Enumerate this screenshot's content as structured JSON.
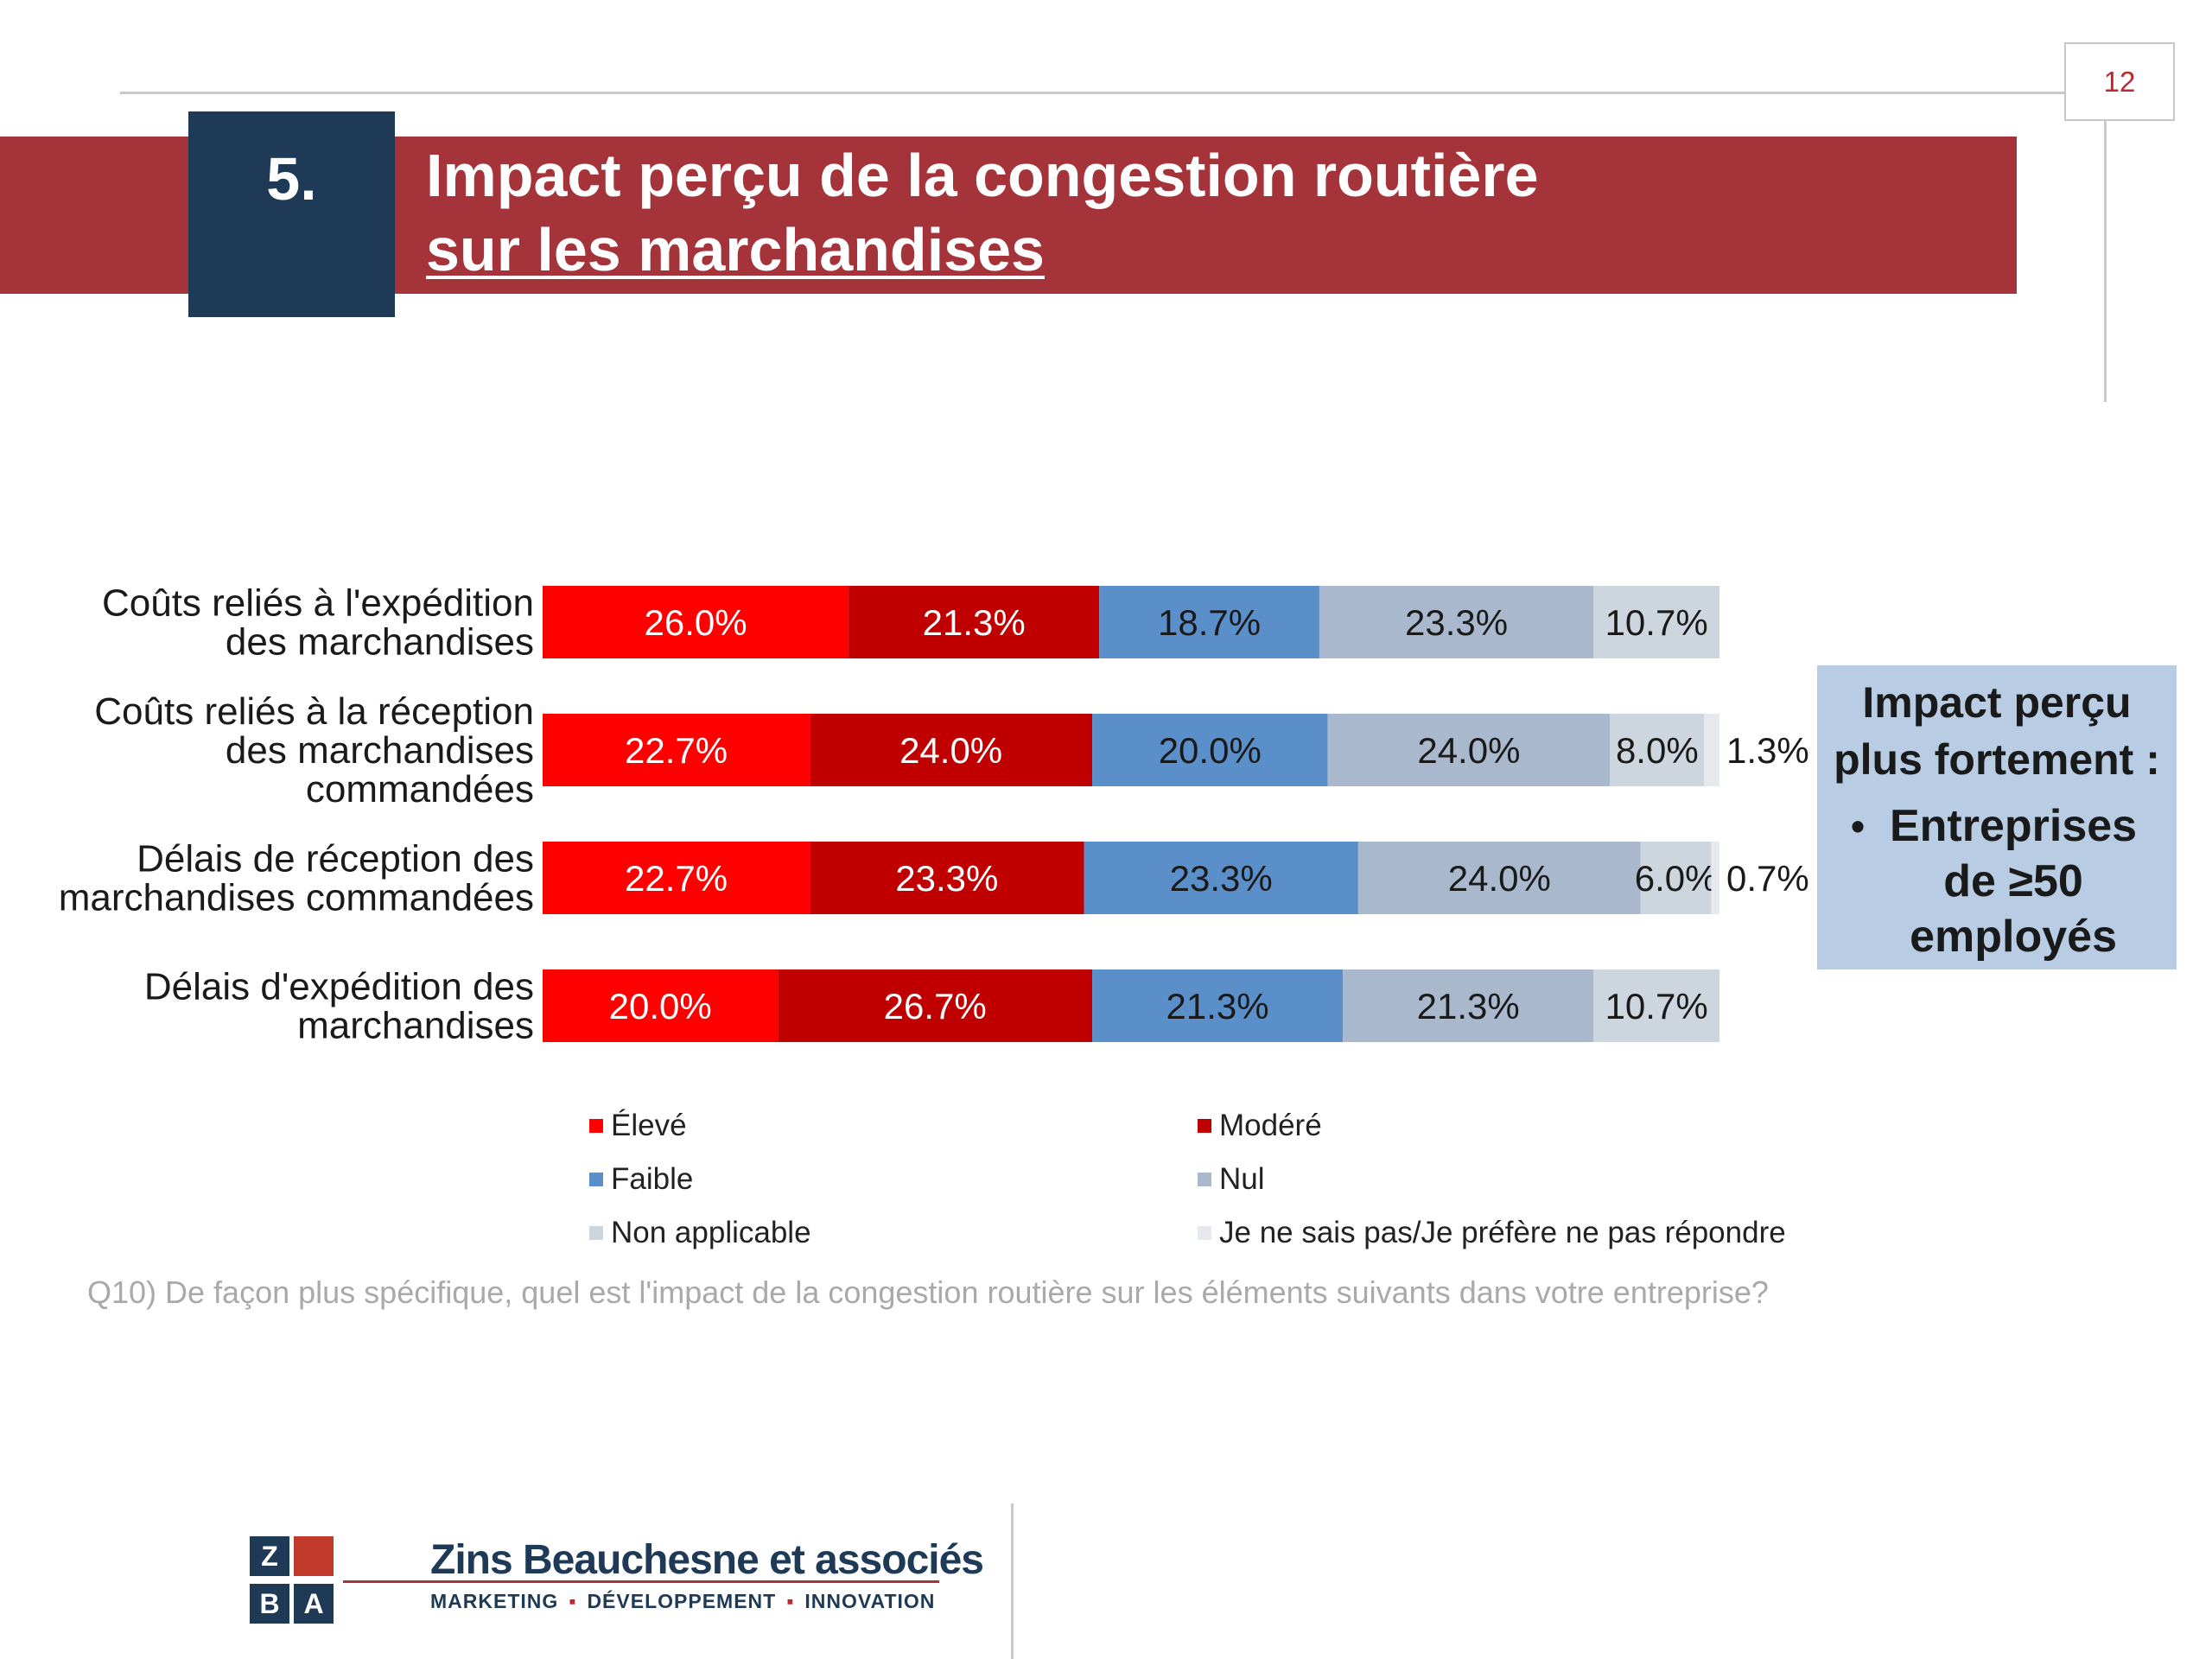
{
  "page_number": "12",
  "section_number": "5.",
  "title": {
    "line1": "Impact perçu de la congestion routière",
    "line2": "sur les marchandises"
  },
  "chart_data": {
    "type": "bar",
    "orientation": "horizontal",
    "stacked": true,
    "categories": [
      [
        "Coûts reliés à l'expédition",
        "des marchandises"
      ],
      [
        "Coûts reliés à la réception",
        "des marchandises",
        "commandées"
      ],
      [
        "Délais de réception des",
        "marchandises commandées"
      ],
      [
        "Délais d'expédition des",
        "marchandises"
      ]
    ],
    "series": [
      {
        "name": "Élevé",
        "color": "#ff0000",
        "values": [
          26.0,
          22.7,
          22.7,
          20.0
        ]
      },
      {
        "name": "Modéré",
        "color": "#c00000",
        "values": [
          21.3,
          24.0,
          23.3,
          26.7
        ]
      },
      {
        "name": "Faible",
        "color": "#5b8fc9",
        "values": [
          18.7,
          20.0,
          23.3,
          21.3
        ]
      },
      {
        "name": "Nul",
        "color": "#a9b8cc",
        "values": [
          23.3,
          24.0,
          24.0,
          21.3
        ]
      },
      {
        "name": "Non applicable",
        "color": "#cdd5df",
        "values": [
          10.7,
          8.0,
          6.0,
          10.7
        ]
      },
      {
        "name": "Je ne sais pas/Je préfère ne pas répondre",
        "color": "#e6e9ee",
        "values": [
          0,
          1.3,
          0.7,
          0
        ]
      }
    ],
    "label_colors": [
      "#ffffff",
      "#ffffff",
      "#1a1a1a",
      "#1a1a1a",
      "#1a1a1a",
      "#1a1a1a"
    ],
    "unit": "%",
    "xlim": [
      0,
      100
    ],
    "legend_position": "bottom"
  },
  "question": "Q10) De façon plus spécifique, quel est l'impact de la congestion routière sur les éléments suivants dans votre entreprise?",
  "callout": {
    "title_line1": "Impact perçu",
    "title_line2": "plus fortement :",
    "bullet": "•",
    "item_line1": "Entreprises",
    "item_line2": "de ≥50",
    "item_line3": "employés"
  },
  "logo": {
    "letters": [
      "Z",
      "",
      "B",
      "A"
    ],
    "letter_colors": [
      "#1e3a57",
      "#c0392b",
      "#1e3a57",
      "#1e3a57"
    ],
    "name": "Zins Beauchesne et associés",
    "tagline": [
      "MARKETING",
      "DÉVELOPPEMENT",
      "INNOVATION"
    ]
  }
}
